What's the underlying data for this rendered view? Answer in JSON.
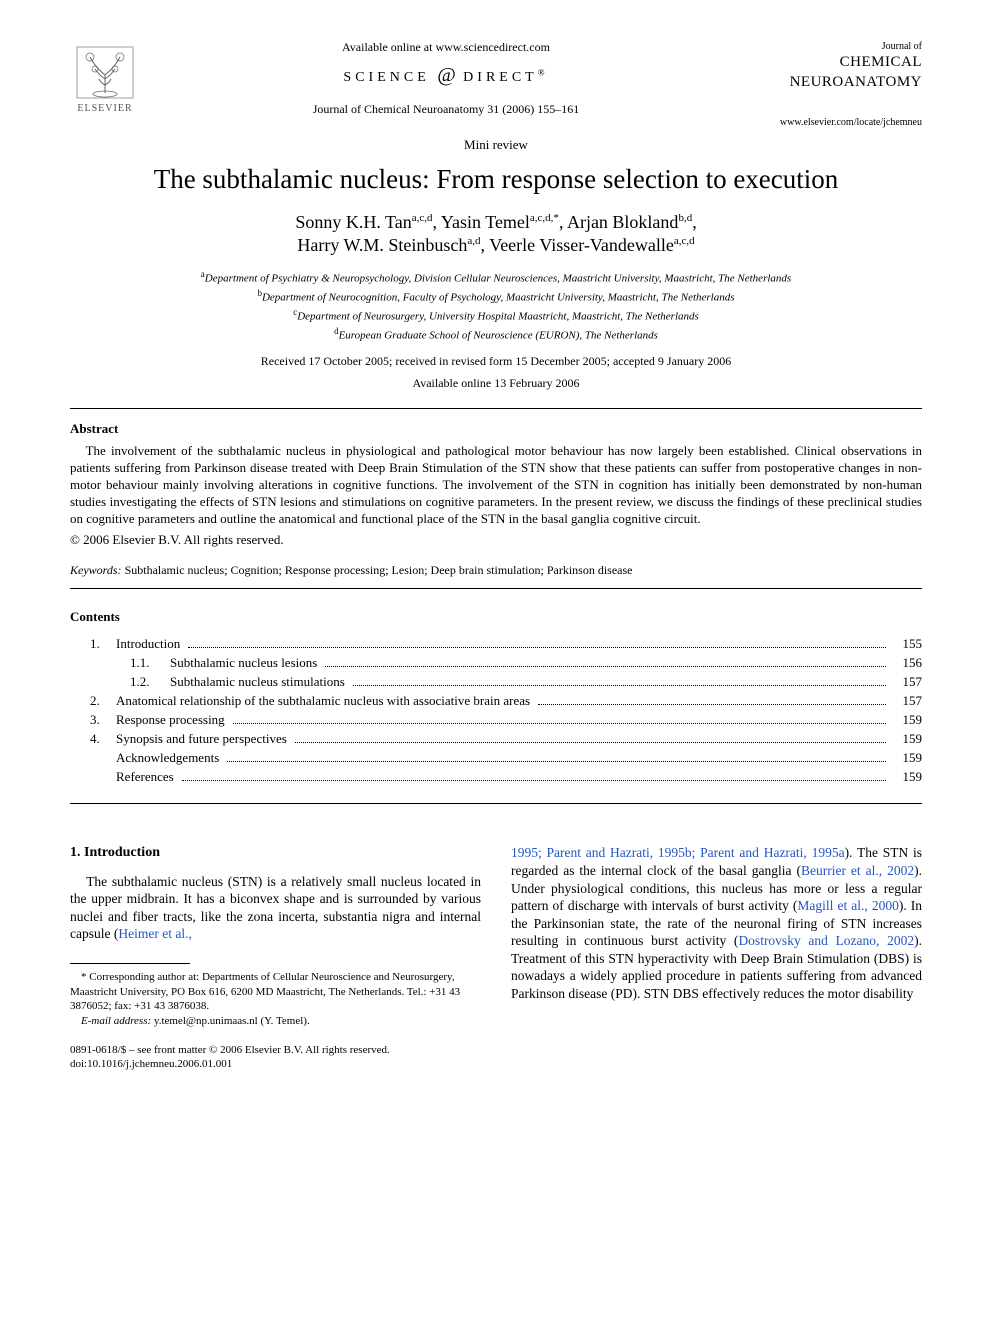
{
  "header": {
    "available_text": "Available online at www.sciencedirect.com",
    "sd_brand_left": "SCIENCE",
    "sd_brand_right": "DIRECT",
    "publisher": "ELSEVIER",
    "journal_line": "Journal of Chemical Neuroanatomy 31 (2006) 155–161",
    "journal_of": "Journal of",
    "journal_title_1": "CHEMICAL",
    "journal_title_2": "NEUROANATOMY",
    "locate_url": "www.elsevier.com/locate/jchemneu"
  },
  "article": {
    "type": "Mini review",
    "title": "The subthalamic nucleus: From response selection to execution",
    "authors_line1": "Sonny K.H. Tan",
    "authors_sup1": "a,c,d",
    "authors_line2": ", Yasin Temel",
    "authors_sup2": "a,c,d,*",
    "authors_line3": ", Arjan Blokland",
    "authors_sup3": "b,d",
    "authors_line4": "Harry W.M. Steinbusch",
    "authors_sup4": "a,d",
    "authors_line5": ", Veerle Visser-Vandewalle",
    "authors_sup5": "a,c,d",
    "affil_a": "Department of Psychiatry & Neuropsychology, Division Cellular Neurosciences, Maastricht University, Maastricht, The Netherlands",
    "affil_b": "Department of Neurocognition, Faculty of Psychology, Maastricht University, Maastricht, The Netherlands",
    "affil_c": "Department of Neurosurgery, University Hospital Maastricht, Maastricht, The Netherlands",
    "affil_d": "European Graduate School of Neuroscience (EURON), The Netherlands",
    "dates": "Received 17 October 2005; received in revised form 15 December 2005; accepted 9 January 2006",
    "avail_online": "Available online 13 February 2006"
  },
  "abstract": {
    "head": "Abstract",
    "body": "The involvement of the subthalamic nucleus in physiological and pathological motor behaviour has now largely been established. Clinical observations in patients suffering from Parkinson disease treated with Deep Brain Stimulation of the STN show that these patients can suffer from postoperative changes in non-motor behaviour mainly involving alterations in cognitive functions. The involvement of the STN in cognition has initially been demonstrated by non-human studies investigating the effects of STN lesions and stimulations on cognitive parameters. In the present review, we discuss the findings of these preclinical studies on cognitive parameters and outline the anatomical and functional place of the STN in the basal ganglia cognitive circuit.",
    "copyright": "© 2006 Elsevier B.V. All rights reserved."
  },
  "keywords": {
    "label": "Keywords:",
    "text": " Subthalamic nucleus; Cognition; Response processing; Lesion; Deep brain stimulation; Parkinson disease"
  },
  "contents": {
    "head": "Contents",
    "items": [
      {
        "num": "1.",
        "label": "Introduction",
        "page": "155",
        "level": 0
      },
      {
        "num": "1.1.",
        "label": "Subthalamic nucleus lesions",
        "page": "156",
        "level": 1
      },
      {
        "num": "1.2.",
        "label": "Subthalamic nucleus stimulations",
        "page": "157",
        "level": 1
      },
      {
        "num": "2.",
        "label": "Anatomical relationship of the subthalamic nucleus with associative brain areas",
        "page": "157",
        "level": 0
      },
      {
        "num": "3.",
        "label": "Response processing",
        "page": "159",
        "level": 0
      },
      {
        "num": "4.",
        "label": "Synopsis and future perspectives",
        "page": "159",
        "level": 0
      },
      {
        "num": "",
        "label": "Acknowledgements",
        "page": "159",
        "level": 2
      },
      {
        "num": "",
        "label": "References",
        "page": "159",
        "level": 2
      }
    ]
  },
  "body": {
    "sec1_head": "1.  Introduction",
    "col1_p1a": "The subthalamic nucleus (STN) is a relatively small nucleus located in the upper midbrain. It has a biconvex shape and is surrounded by various nuclei and fiber tracts, like the zona incerta, substantia nigra and internal capsule (",
    "col1_cite1": "Heimer et al.,",
    "col2_cite_cont": "1995; Parent and Hazrati, 1995b; Parent and Hazrati, 1995a",
    "col2_p1a": "). The STN is regarded as the internal clock of the basal ganglia (",
    "col2_cite2": "Beurrier et al., 2002",
    "col2_p1b": "). Under physiological conditions, this nucleus has more or less a regular pattern of discharge with intervals of burst activity (",
    "col2_cite3": "Magill et al., 2000",
    "col2_p1c": "). In the Parkinsonian state, the rate of the neuronal firing of STN increases resulting in continuous burst activity (",
    "col2_cite4": "Dostrovsky and Lozano, 2002",
    "col2_p1d": "). Treatment of this STN hyperactivity with Deep Brain Stimulation (DBS) is nowadays a widely applied procedure in patients suffering from advanced Parkinson disease (PD). STN DBS effectively reduces the motor disability"
  },
  "footnote": {
    "corr": "* Corresponding author at: Departments of Cellular Neuroscience and Neurosurgery, Maastricht University, PO Box 616, 6200 MD Maastricht, The Netherlands. Tel.: +31 43 3876052; fax: +31 43 3876038.",
    "email_label": "E-mail address:",
    "email": " y.temel@np.unimaas.nl (Y. Temel)."
  },
  "footer": {
    "issn": "0891-0618/$ – see front matter © 2006 Elsevier B.V. All rights reserved.",
    "doi": "doi:10.1016/j.jchemneu.2006.01.001"
  },
  "colors": {
    "citation": "#2355c4",
    "text": "#000000",
    "background": "#ffffff"
  }
}
